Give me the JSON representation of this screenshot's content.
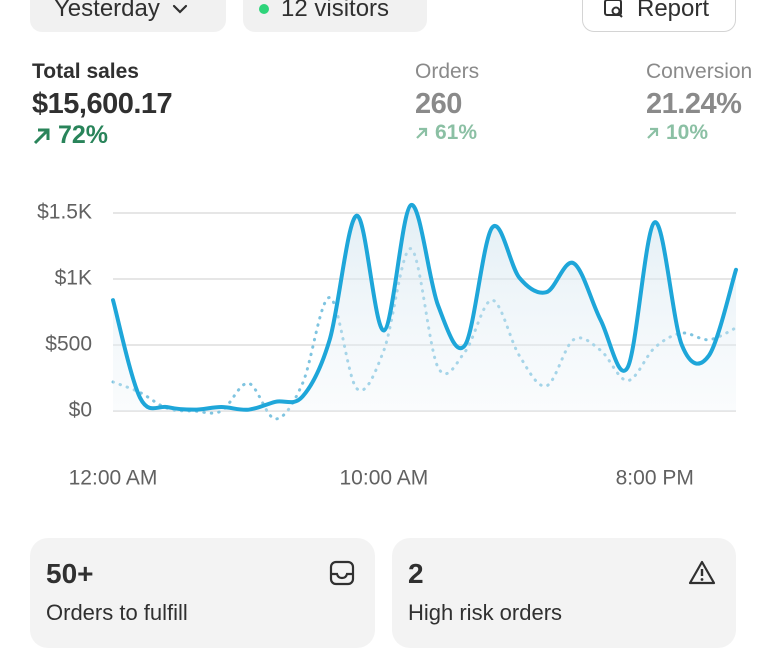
{
  "toolbar": {
    "date": "Yesterday",
    "visitors": "12 visitors",
    "report": "Report"
  },
  "metrics": [
    {
      "label": "Total sales",
      "value": "$15,600.17",
      "change": "72%"
    },
    {
      "label": "Orders",
      "value": "260",
      "change": "61%"
    },
    {
      "label": "Conversion",
      "value": "21.24%",
      "change": "10%"
    }
  ],
  "chart_data": {
    "type": "line",
    "categories": [
      "12:00 AM",
      null,
      null,
      null,
      null,
      null,
      null,
      null,
      null,
      null,
      "10:00 AM",
      null,
      null,
      null,
      null,
      null,
      null,
      null,
      null,
      null,
      "8:00 PM",
      null,
      null,
      null
    ],
    "series": [
      {
        "color": "#1ea6d9",
        "style": "solid",
        "values": [
          840,
          100,
          30,
          10,
          30,
          10,
          70,
          110,
          540,
          1480,
          610,
          1560,
          800,
          500,
          1390,
          1010,
          900,
          1120,
          690,
          330,
          1430,
          500,
          420,
          1070
        ]
      },
      {
        "color": "#7fc4e0",
        "style": "dotted",
        "values": [
          220,
          140,
          20,
          0,
          0,
          210,
          -60,
          210,
          860,
          170,
          460,
          1230,
          330,
          450,
          840,
          420,
          190,
          540,
          460,
          230,
          480,
          590,
          540,
          630
        ]
      }
    ],
    "ylim": [
      0,
      1500
    ],
    "yticks": [
      {
        "value": 0,
        "label": "$0"
      },
      {
        "value": 500,
        "label": "$500"
      },
      {
        "value": 1000,
        "label": "$1K"
      },
      {
        "value": 1500,
        "label": "$1.5K"
      }
    ],
    "grid": true
  },
  "cards": [
    {
      "count": "50+",
      "label": "Orders to fulfill"
    },
    {
      "count": "2",
      "label": "High risk orders"
    }
  ]
}
